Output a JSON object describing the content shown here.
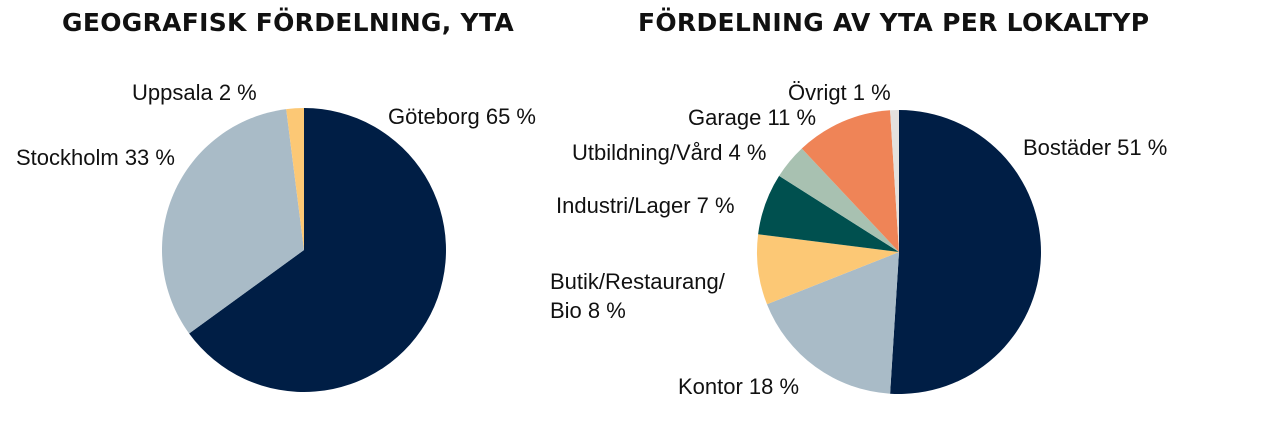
{
  "chart_data": [
    {
      "type": "pie",
      "title": "GEOGRAFISK FÖRDELNING, YTA",
      "slices": [
        {
          "label": "Göteborg 65 %",
          "name": "Göteborg",
          "value": 65,
          "color": "#001e45"
        },
        {
          "label": "Stockholm 33 %",
          "name": "Stockholm",
          "value": 33,
          "color": "#a9bbc7"
        },
        {
          "label": "Uppsala 2 %",
          "name": "Uppsala",
          "value": 2,
          "color": "#fcc875"
        }
      ]
    },
    {
      "type": "pie",
      "title": "FÖRDELNING AV YTA PER LOKALTYP",
      "slices": [
        {
          "label": "Bostäder 51 %",
          "name": "Bostäder",
          "value": 51,
          "color": "#001e45"
        },
        {
          "label": "Kontor 18 %",
          "name": "Kontor",
          "value": 18,
          "color": "#a9bbc7"
        },
        {
          "label": "Butik/Restaurang/\nBio 8 %",
          "name": "Butik/Restaurang/Bio",
          "value": 8,
          "color": "#fcc875"
        },
        {
          "label": "Industri/Lager 7 %",
          "name": "Industri/Lager",
          "value": 7,
          "color": "#00504f"
        },
        {
          "label": "Utbildning/Vård 4 %",
          "name": "Utbildning/Vård",
          "value": 4,
          "color": "#a8c1b1"
        },
        {
          "label": "Garage 11 %",
          "name": "Garage",
          "value": 11,
          "color": "#ef8457"
        },
        {
          "label": "Övrigt 1 %",
          "name": "Övrigt",
          "value": 1,
          "color": "#e4e1de"
        }
      ]
    }
  ]
}
